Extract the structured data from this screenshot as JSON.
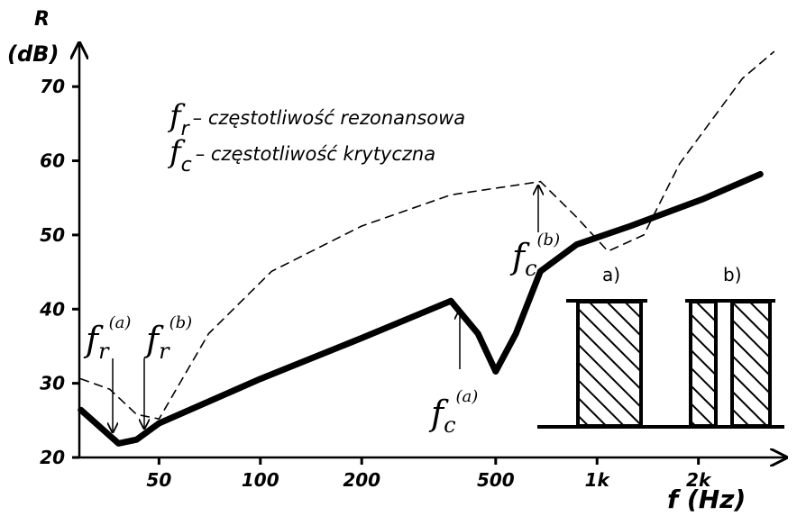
{
  "chart_data": {
    "type": "line",
    "y_label": [
      "R",
      "(dB)"
    ],
    "x_label": "f (Hz)",
    "x_scale": "log",
    "xlim": [
      29,
      3600
    ],
    "ylim": [
      20,
      75
    ],
    "xticks": [
      50,
      100,
      200,
      500,
      {
        "value": 1000,
        "label": "1k"
      },
      {
        "value": 2000,
        "label": "2k"
      }
    ],
    "yticks": [
      20,
      30,
      40,
      50,
      60,
      70
    ],
    "grid": false,
    "legend": [
      {
        "symbol": "f",
        "sub": "r",
        "text": "– częstotliwość rezonansowa"
      },
      {
        "symbol": "f",
        "sub": "c",
        "text": "– częstotliwość krytyczna"
      }
    ],
    "annotations": [
      {
        "symbol": "f",
        "sub": "r",
        "sup": "(a)"
      },
      {
        "symbol": "f",
        "sub": "r",
        "sup": "(b)"
      },
      {
        "symbol": "f",
        "sub": "c",
        "sup": "(a)"
      },
      {
        "symbol": "f",
        "sub": "c",
        "sup": "(b)"
      }
    ],
    "wall_labels": [
      "a)",
      "b)"
    ],
    "series": [
      {
        "color": "#000000",
        "style": "solid",
        "width": 7,
        "x": [
          29.3,
          37.9,
          42.9,
          50,
          100,
          200,
          368,
          443,
          500,
          574,
          679,
          869,
          1257,
          2052,
          3053
        ],
        "values": [
          26.4,
          21.9,
          22.4,
          24.6,
          30.6,
          36.1,
          41.1,
          36.7,
          31.6,
          36.7,
          45.1,
          48.7,
          51.2,
          54.8,
          58.2
        ]
      },
      {
        "color": "#000000",
        "style": "dashed",
        "width": 1.6,
        "x": [
          29.3,
          35.7,
          42.9,
          50,
          70.2,
          108,
          200,
          368,
          679,
          869,
          1077,
          1377,
          1759,
          2703,
          3350
        ],
        "values": [
          30.6,
          29.2,
          25.8,
          25.2,
          36.7,
          45.1,
          51.2,
          55.4,
          57.2,
          52.4,
          47.8,
          50,
          59.6,
          71.1,
          74.7
        ]
      }
    ]
  }
}
